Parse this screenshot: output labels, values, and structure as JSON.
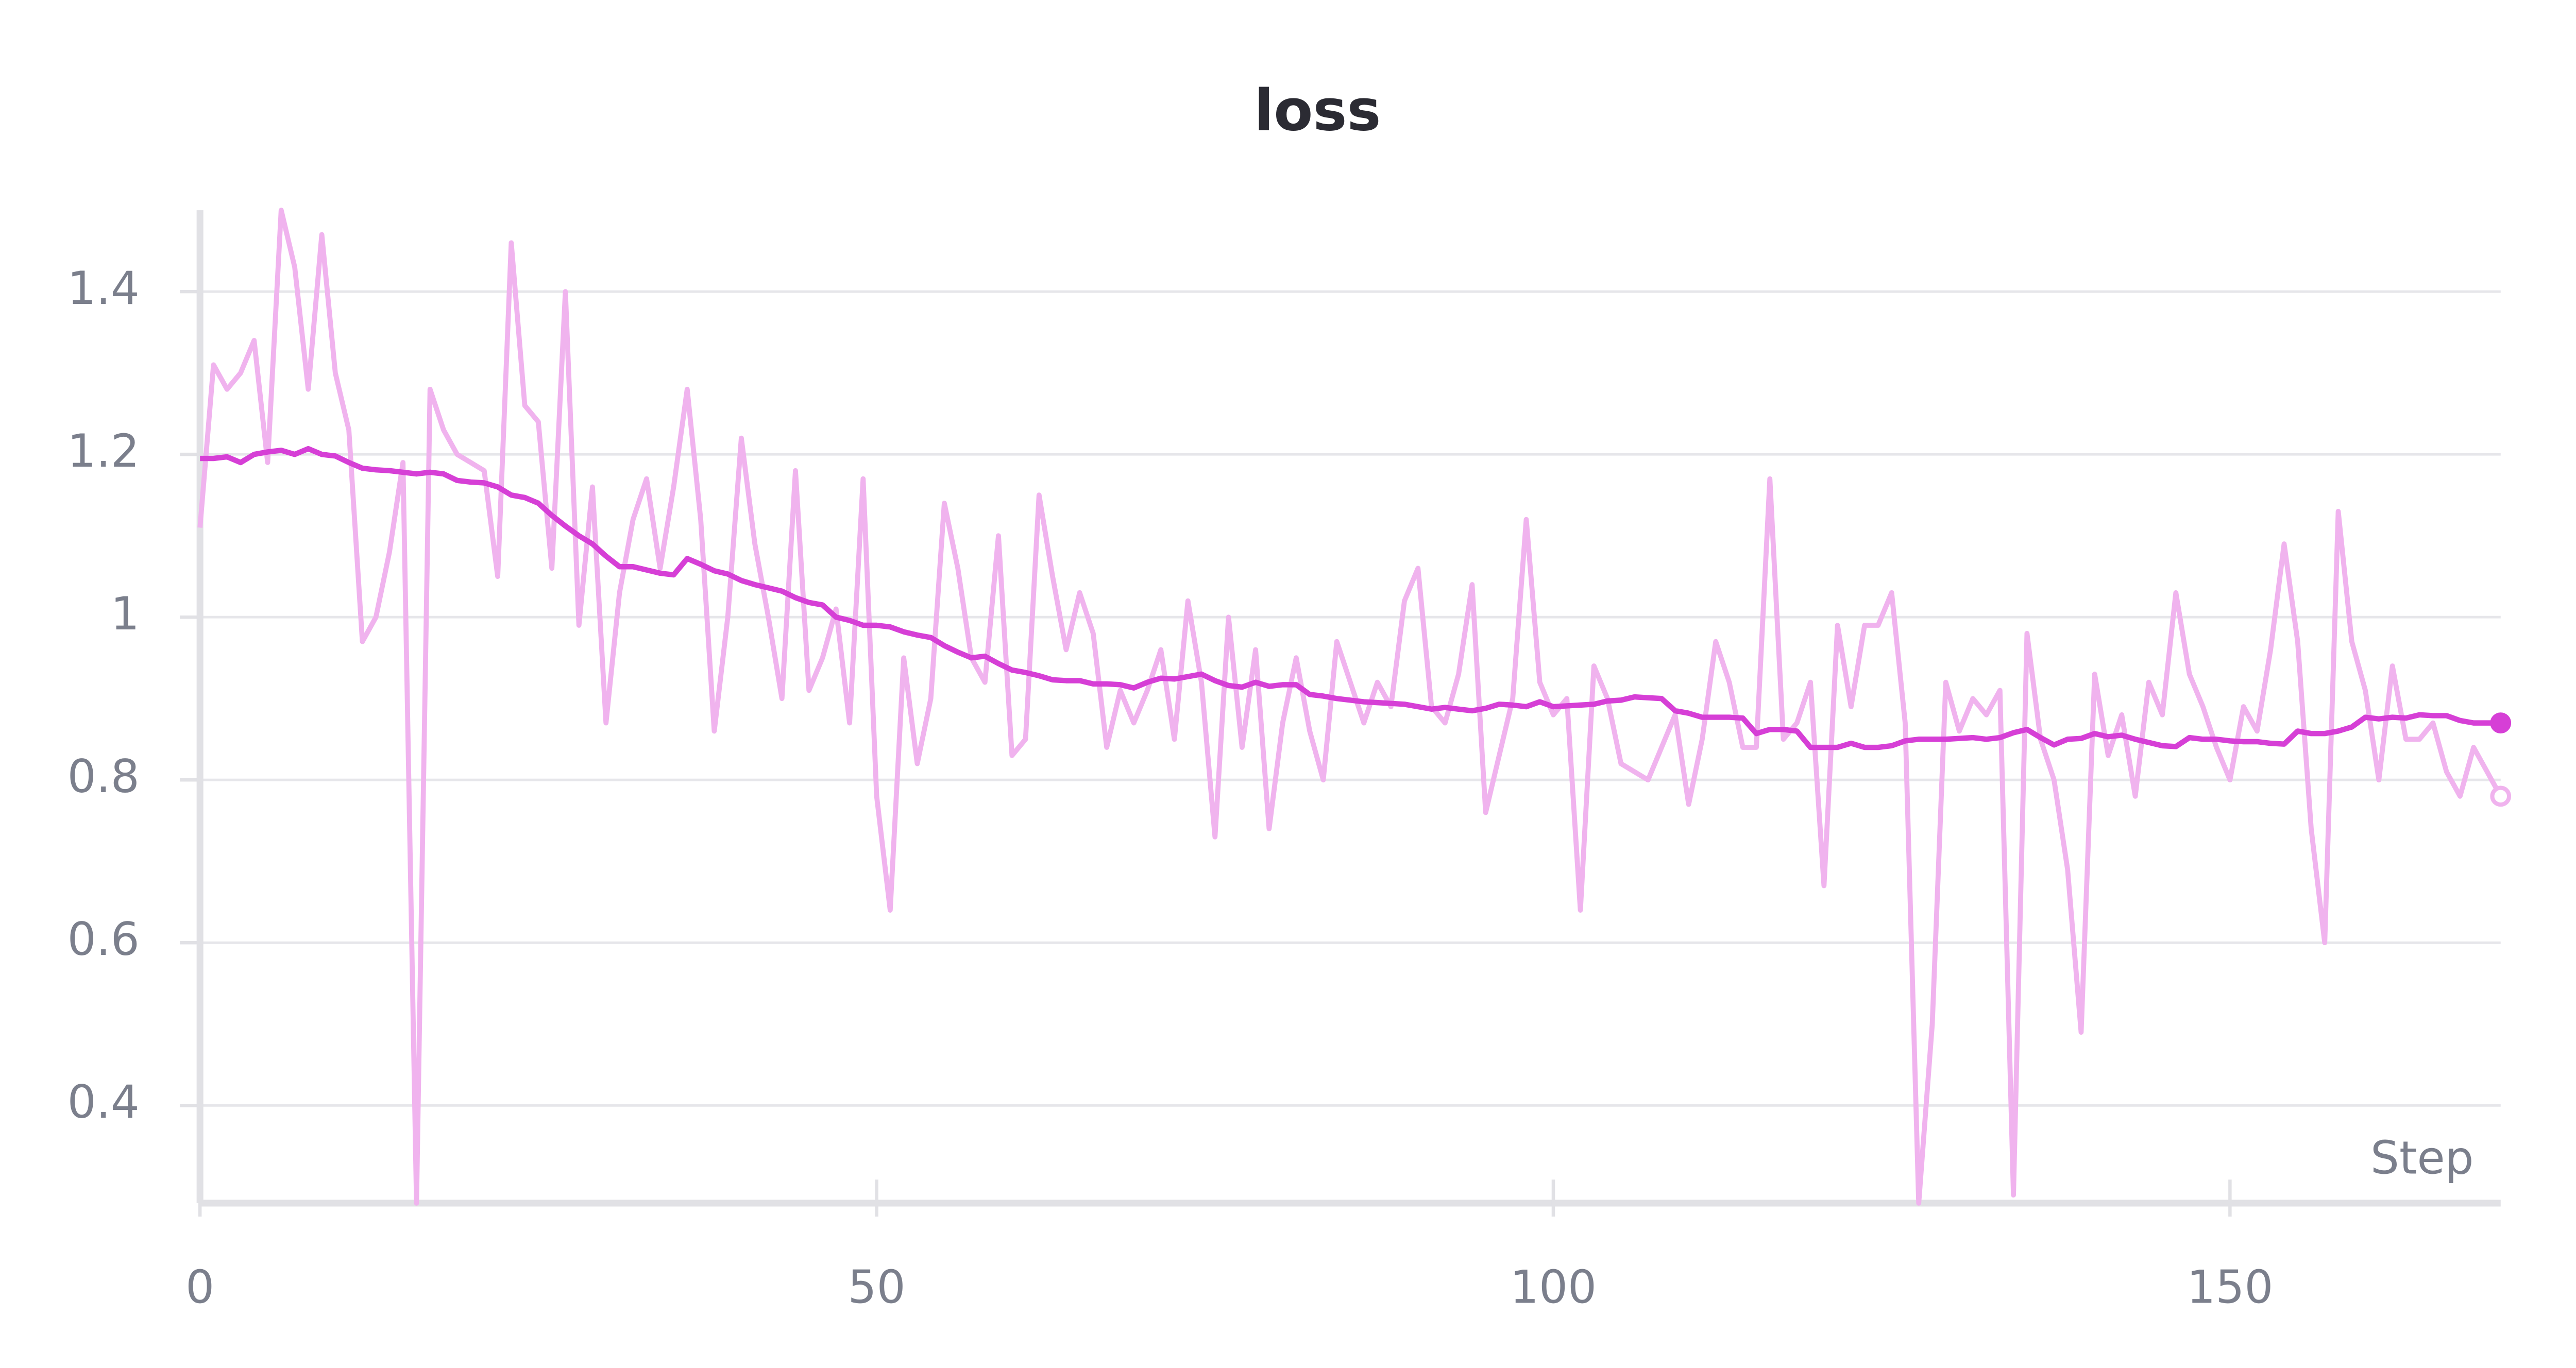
{
  "chart_data": {
    "type": "line",
    "title": "loss",
    "x_label": "Step",
    "x": [
      0,
      1,
      2,
      3,
      4,
      5,
      6,
      7,
      8,
      9,
      10,
      11,
      12,
      13,
      14,
      15,
      16,
      17,
      18,
      19,
      20,
      21,
      22,
      23,
      24,
      25,
      26,
      27,
      28,
      29,
      30,
      31,
      32,
      33,
      34,
      35,
      36,
      37,
      38,
      39,
      40,
      41,
      42,
      43,
      44,
      45,
      46,
      47,
      48,
      49,
      50,
      51,
      52,
      53,
      54,
      55,
      56,
      57,
      58,
      59,
      60,
      61,
      62,
      63,
      64,
      65,
      66,
      67,
      68,
      69,
      70,
      71,
      72,
      73,
      74,
      75,
      76,
      77,
      78,
      79,
      80,
      81,
      82,
      83,
      84,
      85,
      86,
      87,
      88,
      89,
      90,
      91,
      92,
      93,
      94,
      95,
      96,
      97,
      98,
      99,
      100,
      101,
      102,
      103,
      104,
      105,
      106,
      107,
      108,
      109,
      110,
      111,
      112,
      113,
      114,
      115,
      116,
      117,
      118,
      119,
      120,
      121,
      122,
      123,
      124,
      125,
      126,
      127,
      128,
      129,
      130,
      131,
      132,
      133,
      134,
      135,
      136,
      137,
      138,
      139,
      140,
      141,
      142,
      143,
      144,
      145,
      146,
      147,
      148,
      149,
      150,
      151,
      152,
      153,
      154,
      155,
      156,
      157,
      158,
      159,
      160,
      161,
      162,
      163,
      164,
      165,
      166,
      167,
      168,
      169,
      170
    ],
    "series": [
      {
        "color": "#f0b3ee",
        "values": [
          1.11,
          1.31,
          1.28,
          1.3,
          1.34,
          1.19,
          1.5,
          1.43,
          1.28,
          1.47,
          1.3,
          1.23,
          0.97,
          1.0,
          1.08,
          1.19,
          0.28,
          1.28,
          1.23,
          1.2,
          1.19,
          1.18,
          1.05,
          1.46,
          1.26,
          1.24,
          1.06,
          1.4,
          0.99,
          1.16,
          0.87,
          1.03,
          1.12,
          1.17,
          1.06,
          1.16,
          1.28,
          1.12,
          0.86,
          1.0,
          1.22,
          1.09,
          1.0,
          0.9,
          1.18,
          0.91,
          0.95,
          1.01,
          0.87,
          1.17,
          0.78,
          0.64,
          0.95,
          0.82,
          0.9,
          1.14,
          1.06,
          0.95,
          0.92,
          1.1,
          0.83,
          0.85,
          1.15,
          1.05,
          0.96,
          1.03,
          0.98,
          0.84,
          0.91,
          0.87,
          0.91,
          0.96,
          0.85,
          1.02,
          0.92,
          0.73,
          1.0,
          0.84,
          0.96,
          0.74,
          0.87,
          0.95,
          0.86,
          0.8,
          0.97,
          0.92,
          0.87,
          0.92,
          0.89,
          1.02,
          1.06,
          0.89,
          0.87,
          0.93,
          1.04,
          0.76,
          0.83,
          0.9,
          1.12,
          0.92,
          0.88,
          0.9,
          0.64,
          0.94,
          0.9,
          0.82,
          0.81,
          0.8,
          0.84,
          0.88,
          0.77,
          0.85,
          0.97,
          0.92,
          0.84,
          0.84,
          1.17,
          0.85,
          0.87,
          0.92,
          0.67,
          0.99,
          0.89,
          0.99,
          0.99,
          1.03,
          0.87,
          0.28,
          0.5,
          0.92,
          0.86,
          0.9,
          0.88,
          0.91,
          0.29,
          0.98,
          0.85,
          0.8,
          0.69,
          0.49,
          0.93,
          0.83,
          0.88,
          0.78,
          0.92,
          0.88,
          1.03,
          0.93,
          0.89,
          0.84,
          0.8,
          0.89,
          0.86,
          0.96,
          1.09,
          0.97,
          0.74,
          0.6,
          1.13,
          0.97,
          0.91,
          0.8,
          0.94,
          0.85,
          0.85,
          0.87,
          0.81,
          0.78,
          0.84,
          0.81,
          0.78
        ],
        "end_marker": "hollow"
      },
      {
        "color": "#d63fd6",
        "values": [
          1.195,
          1.195,
          1.197,
          1.19,
          1.2,
          1.203,
          1.205,
          1.2,
          1.207,
          1.2,
          1.198,
          1.19,
          1.183,
          1.181,
          1.18,
          1.178,
          1.176,
          1.178,
          1.176,
          1.168,
          1.166,
          1.165,
          1.16,
          1.15,
          1.147,
          1.14,
          1.125,
          1.112,
          1.1,
          1.09,
          1.075,
          1.062,
          1.062,
          1.058,
          1.054,
          1.052,
          1.072,
          1.065,
          1.057,
          1.053,
          1.045,
          1.04,
          1.036,
          1.032,
          1.024,
          1.018,
          1.015,
          1.0,
          0.996,
          0.99,
          0.99,
          0.988,
          0.982,
          0.978,
          0.975,
          0.965,
          0.957,
          0.95,
          0.952,
          0.943,
          0.935,
          0.932,
          0.928,
          0.923,
          0.922,
          0.922,
          0.918,
          0.918,
          0.917,
          0.913,
          0.92,
          0.925,
          0.924,
          0.927,
          0.93,
          0.922,
          0.916,
          0.914,
          0.92,
          0.915,
          0.917,
          0.917,
          0.905,
          0.903,
          0.9,
          0.898,
          0.896,
          0.895,
          0.894,
          0.893,
          0.89,
          0.887,
          0.889,
          0.887,
          0.885,
          0.888,
          0.893,
          0.892,
          0.89,
          0.896,
          0.89,
          0.891,
          0.892,
          0.893,
          0.897,
          0.898,
          0.902,
          0.901,
          0.9,
          0.885,
          0.882,
          0.877,
          0.877,
          0.877,
          0.876,
          0.857,
          0.862,
          0.862,
          0.86,
          0.84,
          0.84,
          0.84,
          0.845,
          0.84,
          0.84,
          0.842,
          0.848,
          0.85,
          0.85,
          0.85,
          0.851,
          0.852,
          0.85,
          0.852,
          0.858,
          0.862,
          0.852,
          0.843,
          0.85,
          0.851,
          0.857,
          0.853,
          0.855,
          0.85,
          0.846,
          0.842,
          0.841,
          0.852,
          0.85,
          0.85,
          0.848,
          0.847,
          0.847,
          0.845,
          0.844,
          0.86,
          0.857,
          0.857,
          0.86,
          0.865,
          0.877,
          0.875,
          0.877,
          0.876,
          0.88,
          0.879,
          0.879,
          0.873,
          0.87,
          0.87,
          0.87
        ],
        "end_marker": "filled"
      }
    ],
    "xlim": [
      0,
      170
    ],
    "ylim": [
      0.28,
      1.5
    ],
    "xticks": [
      0,
      50,
      100,
      150
    ],
    "yticks": [
      0.4,
      0.6,
      0.8,
      1,
      1.2,
      1.4
    ],
    "grid": true
  }
}
